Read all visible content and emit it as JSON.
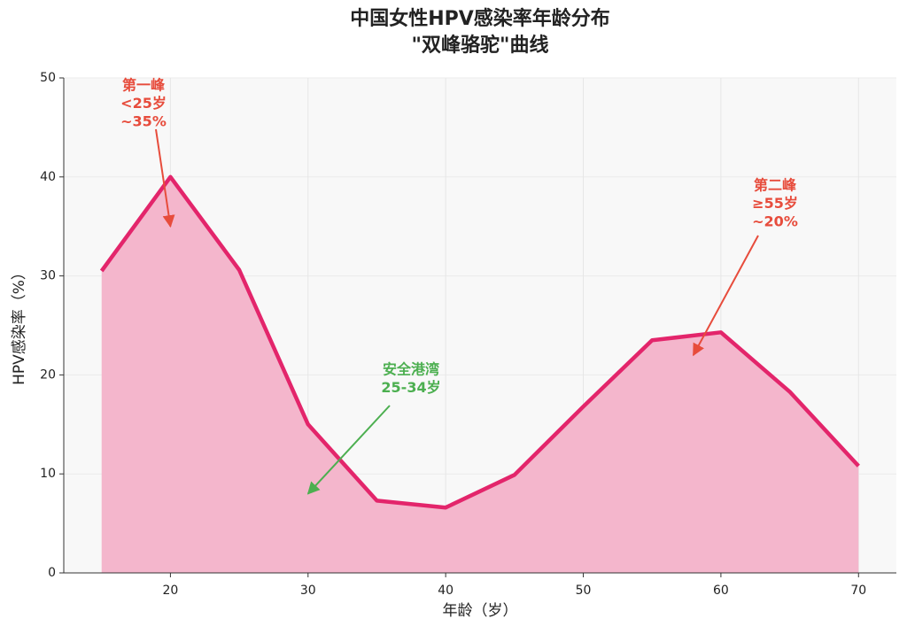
{
  "chart_data": {
    "type": "area-line",
    "title": [
      "中国女性HPV感染率年龄分布",
      "\"双峰骆驼\"曲线"
    ],
    "x_label": "年龄（岁）",
    "y_label": "HPV感染率（%）",
    "x": [
      15,
      20,
      25,
      30,
      35,
      40,
      45,
      50,
      55,
      60,
      65,
      70
    ],
    "values": [
      30.5,
      40,
      30.6,
      15,
      7.3,
      6.6,
      9.9,
      16.8,
      23.5,
      24.3,
      18.3,
      10.8
    ],
    "color": "#e3256b",
    "fill_color": "#f4b6cc",
    "xlim": [
      12.25,
      72.75
    ],
    "xticks": [
      20,
      30,
      40,
      50,
      60,
      70
    ],
    "ylim": [
      0,
      50
    ],
    "yticks": [
      0,
      10,
      20,
      30,
      40,
      50
    ],
    "grid": true,
    "annotations": [
      {
        "text": [
          "第一峰",
          "<25岁",
          "~35%"
        ],
        "xy": [
          20,
          35
        ],
        "color": "#e74c3c"
      },
      {
        "text": [
          "第二峰",
          "≥55岁",
          "~20%"
        ],
        "xy": [
          58,
          22
        ],
        "color": "#e74c3c"
      },
      {
        "text": [
          "安全港湾",
          "25-34岁"
        ],
        "xy": [
          30,
          8
        ],
        "color": "#4caf50"
      }
    ]
  }
}
